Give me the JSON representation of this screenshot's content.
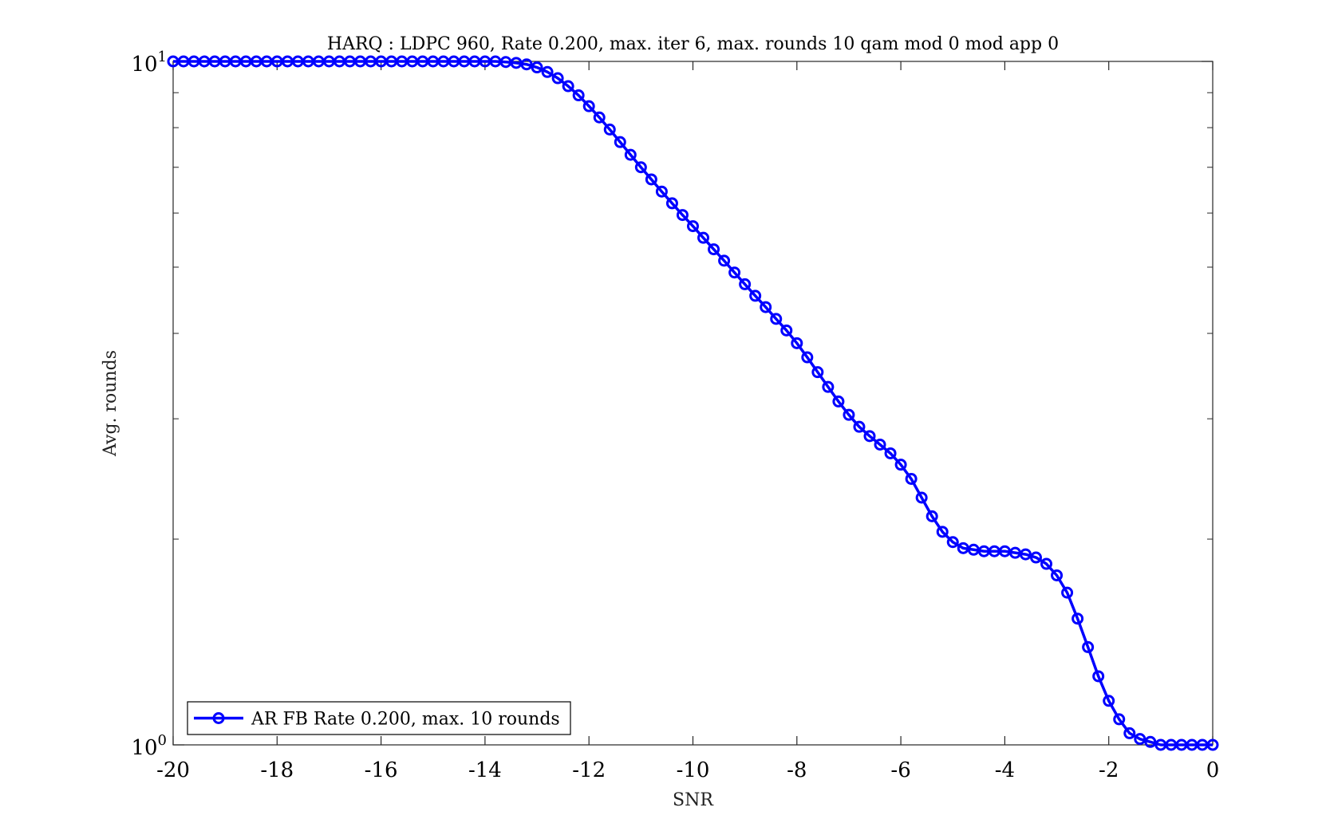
{
  "chart_data": {
    "type": "line",
    "title": "HARQ : LDPC 960, Rate 0.200, max. iter 6, max. rounds 10 qam mod 0 mod app 0",
    "xlabel": "SNR",
    "ylabel": "Avg. rounds",
    "xlim": [
      -20,
      0
    ],
    "ylim": [
      1,
      10
    ],
    "yscale": "log",
    "xticks": [
      -20,
      -18,
      -16,
      -14,
      -12,
      -10,
      -8,
      -6,
      -4,
      -2,
      0
    ],
    "xtick_labels": [
      "-20",
      "-18",
      "-16",
      "-14",
      "-12",
      "-10",
      "-8",
      "-6",
      "-4",
      "-2",
      "0"
    ],
    "yticks": [
      {
        "base": "10",
        "exp": "0"
      },
      {
        "base": "10",
        "exp": "1"
      }
    ],
    "grid": false,
    "legend_position": "bottom-left",
    "series": [
      {
        "name": "AR FB Rate 0.200, max. 10 rounds",
        "color": "#0000ff",
        "marker": "circle",
        "x": [
          -20.0,
          -19.8,
          -19.6,
          -19.4,
          -19.2,
          -19.0,
          -18.8,
          -18.6,
          -18.4,
          -18.2,
          -18.0,
          -17.8,
          -17.6,
          -17.4,
          -17.2,
          -17.0,
          -16.8,
          -16.6,
          -16.4,
          -16.2,
          -16.0,
          -15.8,
          -15.6,
          -15.4,
          -15.2,
          -15.0,
          -14.8,
          -14.6,
          -14.4,
          -14.2,
          -14.0,
          -13.8,
          -13.6,
          -13.4,
          -13.2,
          -13.0,
          -12.8,
          -12.6,
          -12.4,
          -12.2,
          -12.0,
          -11.8,
          -11.6,
          -11.4,
          -11.2,
          -11.0,
          -10.8,
          -10.6,
          -10.4,
          -10.2,
          -10.0,
          -9.8,
          -9.6,
          -9.4,
          -9.2,
          -9.0,
          -8.8,
          -8.6,
          -8.4,
          -8.2,
          -8.0,
          -7.8,
          -7.6,
          -7.4,
          -7.2,
          -7.0,
          -6.8,
          -6.6,
          -6.4,
          -6.2,
          -6.0,
          -5.8,
          -5.6,
          -5.4,
          -5.2,
          -5.0,
          -4.8,
          -4.6,
          -4.4,
          -4.2,
          -4.0,
          -3.8,
          -3.6,
          -3.4,
          -3.2,
          -3.0,
          -2.8,
          -2.6,
          -2.4,
          -2.2,
          -2.0,
          -1.8,
          -1.6,
          -1.4,
          -1.2,
          -1.0,
          -0.8,
          -0.6,
          -0.4,
          -0.2,
          0.0
        ],
        "y": [
          10.0,
          10.0,
          10.0,
          10.0,
          10.0,
          10.0,
          10.0,
          10.0,
          10.0,
          10.0,
          10.0,
          10.0,
          10.0,
          10.0,
          10.0,
          10.0,
          10.0,
          10.0,
          10.0,
          10.0,
          10.0,
          10.0,
          10.0,
          10.0,
          10.0,
          10.0,
          10.0,
          10.0,
          10.0,
          10.0,
          10.0,
          10.0,
          9.98,
          9.95,
          9.9,
          9.8,
          9.65,
          9.45,
          9.2,
          8.92,
          8.6,
          8.28,
          7.95,
          7.62,
          7.3,
          7.0,
          6.72,
          6.45,
          6.2,
          5.96,
          5.74,
          5.52,
          5.31,
          5.11,
          4.91,
          4.72,
          4.54,
          4.37,
          4.2,
          4.04,
          3.87,
          3.69,
          3.51,
          3.34,
          3.18,
          3.04,
          2.92,
          2.83,
          2.75,
          2.67,
          2.57,
          2.45,
          2.3,
          2.16,
          2.05,
          1.98,
          1.94,
          1.93,
          1.92,
          1.92,
          1.92,
          1.91,
          1.9,
          1.88,
          1.84,
          1.77,
          1.67,
          1.53,
          1.39,
          1.26,
          1.16,
          1.09,
          1.04,
          1.02,
          1.01,
          1.0,
          1.0,
          1.0,
          1.0,
          1.0,
          1.0
        ]
      }
    ]
  }
}
